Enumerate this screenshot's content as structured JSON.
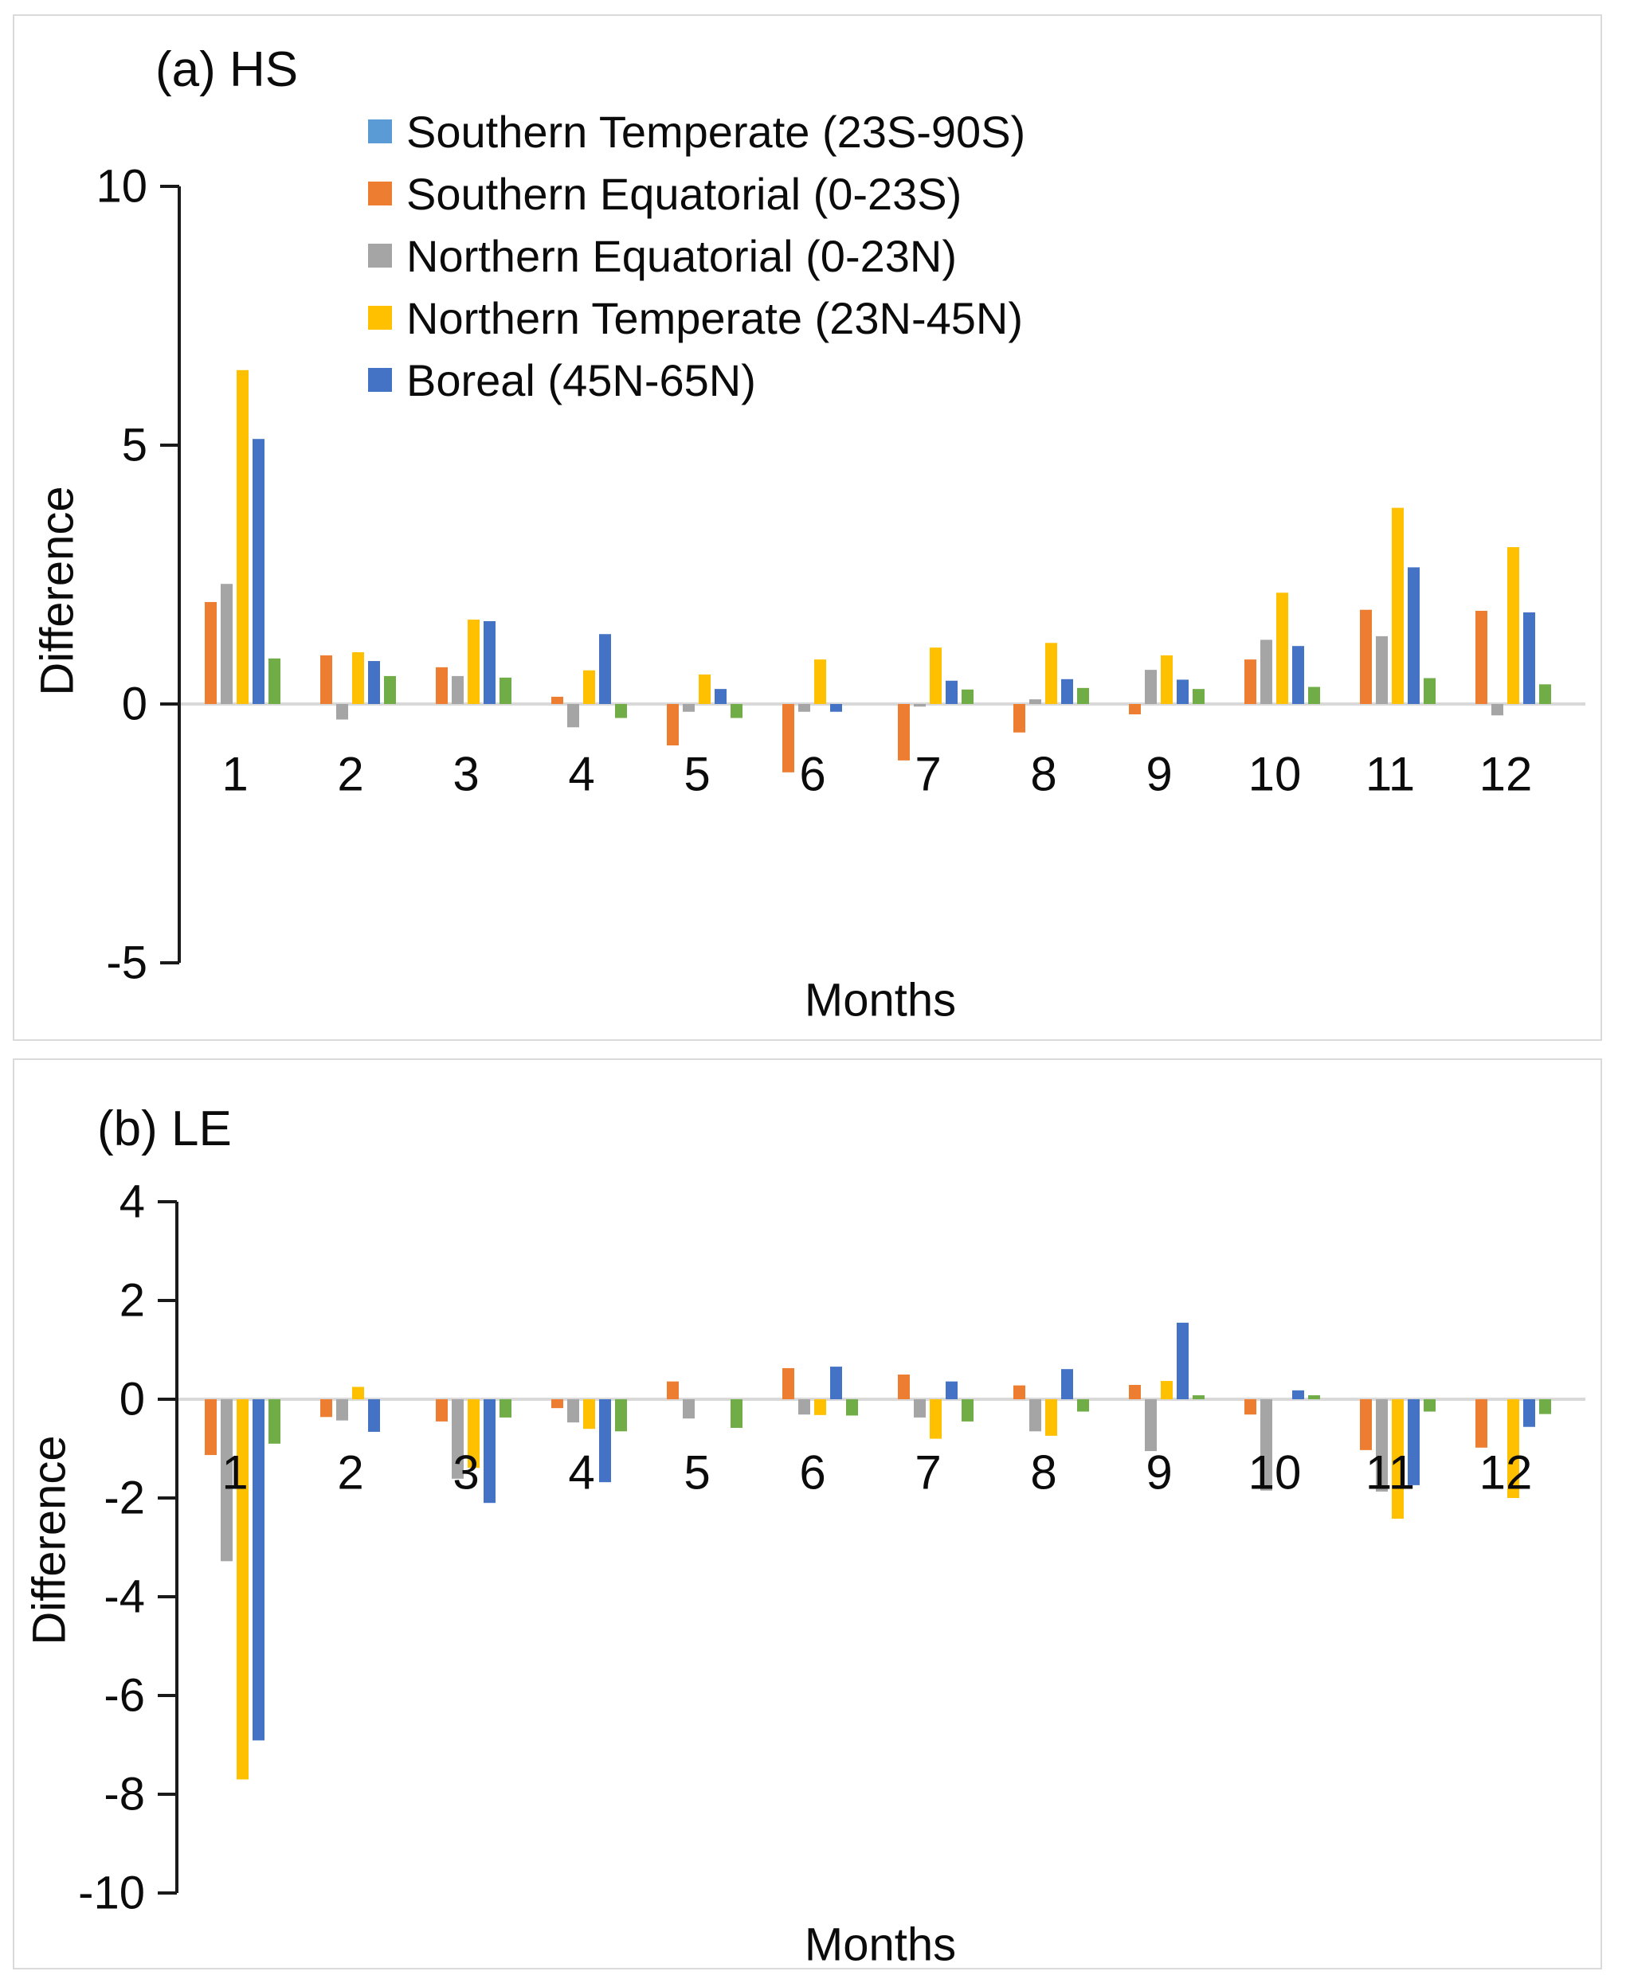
{
  "figure": {
    "panel_a": {
      "title": "(a) HS",
      "ylabel": "Difference",
      "xlabel": "Months"
    },
    "panel_b": {
      "title": "(b) LE",
      "ylabel": "Difference",
      "xlabel": "Months"
    },
    "legend": {
      "items": [
        {
          "label": "Southern Temperate (23S-90S)",
          "color": "#5B9BD5"
        },
        {
          "label": "Southern Equatorial (0-23S)",
          "color": "#ED7D31"
        },
        {
          "label": "Northern Equatorial (0-23N)",
          "color": "#A5A5A5"
        },
        {
          "label": "Northern Temperate (23N-45N)",
          "color": "#FFC000"
        },
        {
          "label": "Boreal (45N-65N)",
          "color": "#4472C4"
        }
      ]
    },
    "colors": {
      "axis": "#1a1a1a",
      "zero_line": "#d9d9d9",
      "unlabeled_green_series": "#70AD47"
    }
  },
  "chart_data": [
    {
      "type": "bar",
      "panel": "a",
      "title": "(a) HS",
      "xlabel": "Months",
      "ylabel": "Difference",
      "ylim": [
        -5,
        10
      ],
      "yticks": [
        10,
        5,
        0,
        -5
      ],
      "grid": false,
      "legend_position": "inside-top-center",
      "categories": [
        "1",
        "2",
        "3",
        "4",
        "5",
        "6",
        "7",
        "8",
        "9",
        "10",
        "11",
        "12"
      ],
      "series": [
        {
          "name": "Southern Temperate (23S-90S)",
          "color": "#5B9BD5",
          "in_legend": true,
          "values": [
            0,
            0,
            0,
            0,
            0,
            0,
            0,
            0,
            0,
            0,
            0,
            0
          ]
        },
        {
          "name": "Southern Equatorial (0-23S)",
          "color": "#ED7D31",
          "in_legend": true,
          "values": [
            1.97,
            0.94,
            0.71,
            0.14,
            -0.8,
            -1.32,
            -1.09,
            -0.55,
            -0.2,
            0.86,
            1.82,
            1.8
          ]
        },
        {
          "name": "Northern Equatorial (0-23N)",
          "color": "#A5A5A5",
          "in_legend": true,
          "values": [
            2.32,
            -0.3,
            0.54,
            -0.45,
            -0.15,
            -0.15,
            -0.05,
            0.09,
            0.66,
            1.24,
            1.31,
            -0.22
          ]
        },
        {
          "name": "Northern Temperate (23N-45N)",
          "color": "#FFC000",
          "in_legend": true,
          "values": [
            6.45,
            1.0,
            1.63,
            0.65,
            0.57,
            0.86,
            1.09,
            1.18,
            0.94,
            2.15,
            3.79,
            3.03
          ]
        },
        {
          "name": "Boreal (45N-65N)",
          "color": "#4472C4",
          "in_legend": true,
          "values": [
            5.12,
            0.83,
            1.6,
            1.35,
            0.29,
            -0.15,
            0.45,
            0.48,
            0.47,
            1.12,
            2.64,
            1.77
          ]
        },
        {
          "name": "Unlabeled (green)",
          "color": "#70AD47",
          "in_legend": false,
          "values": [
            0.88,
            0.54,
            0.51,
            -0.27,
            -0.27,
            0,
            0.28,
            0.31,
            0.29,
            0.33,
            0.5,
            0.38
          ]
        }
      ]
    },
    {
      "type": "bar",
      "panel": "b",
      "title": "(b) LE",
      "xlabel": "Months",
      "ylabel": "Difference",
      "ylim": [
        -10,
        4
      ],
      "yticks": [
        4,
        2,
        0,
        -2,
        -4,
        -6,
        -8,
        -10
      ],
      "grid": false,
      "legend_position": "none",
      "categories": [
        "1",
        "2",
        "3",
        "4",
        "5",
        "6",
        "7",
        "8",
        "9",
        "10",
        "11",
        "12"
      ],
      "series": [
        {
          "name": "Southern Temperate (23S-90S)",
          "color": "#5B9BD5",
          "in_legend": true,
          "values": [
            0,
            0,
            0,
            0,
            0,
            0,
            0,
            0,
            0,
            0,
            0,
            0
          ]
        },
        {
          "name": "Southern Equatorial (0-23S)",
          "color": "#ED7D31",
          "in_legend": true,
          "values": [
            -1.13,
            -0.36,
            -0.45,
            -0.18,
            0.36,
            0.63,
            0.5,
            0.28,
            0.29,
            -0.31,
            -1.03,
            -0.98
          ]
        },
        {
          "name": "Northern Equatorial (0-23N)",
          "color": "#A5A5A5",
          "in_legend": true,
          "values": [
            -3.28,
            -0.43,
            -1.61,
            -0.47,
            -0.39,
            -0.31,
            -0.37,
            -0.65,
            -1.05,
            -1.85,
            -1.87,
            0
          ]
        },
        {
          "name": "Northern Temperate (23N-45N)",
          "color": "#FFC000",
          "in_legend": true,
          "values": [
            -7.7,
            0.25,
            -1.39,
            -0.6,
            0,
            -0.32,
            -0.8,
            -0.74,
            0.37,
            0,
            -2.42,
            -2.0
          ]
        },
        {
          "name": "Boreal (45N-65N)",
          "color": "#4472C4",
          "in_legend": true,
          "values": [
            -6.91,
            -0.66,
            -2.1,
            -1.68,
            0,
            0.66,
            0.36,
            0.61,
            1.55,
            0.18,
            -1.74,
            -0.56
          ]
        },
        {
          "name": "Unlabeled (green)",
          "color": "#70AD47",
          "in_legend": false,
          "values": [
            -0.9,
            0,
            -0.37,
            -0.65,
            -0.58,
            -0.33,
            -0.45,
            -0.25,
            0.08,
            0.08,
            -0.25,
            -0.3
          ]
        }
      ]
    }
  ]
}
